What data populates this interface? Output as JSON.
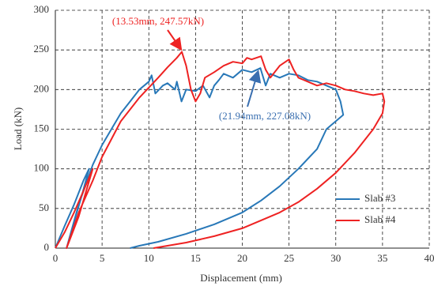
{
  "chart_data": {
    "type": "line",
    "xlabel": "Displacement (mm)",
    "ylabel": "Load (kN)",
    "xlim": [
      0,
      40
    ],
    "xticks": [
      0,
      5,
      10,
      15,
      20,
      25,
      30,
      35,
      40
    ],
    "ylim": [
      0,
      300
    ],
    "yticks": [
      0,
      50,
      100,
      150,
      200,
      250,
      300
    ],
    "grid": true,
    "legend": "lower right",
    "annotations": [
      {
        "text": "(13.53mm, 247.57kN)",
        "color": "#ee2222"
      },
      {
        "text": "(21.94mm, 227.08kN)",
        "color": "#3a6fb0"
      }
    ],
    "series": [
      {
        "name": "Slab #3",
        "color": "#2878b8",
        "x": [
          0,
          1,
          2,
          3,
          3.6,
          2.8,
          1.8,
          1.2,
          2.5,
          4,
          5,
          6,
          7,
          8,
          9,
          10,
          10.3,
          10.7,
          11.5,
          12,
          12.8,
          13,
          13.5,
          14,
          15,
          15.8,
          16.5,
          17,
          17.5,
          18,
          19,
          20,
          21,
          21.94,
          22.5,
          23,
          24,
          25,
          26,
          27,
          28,
          29,
          30,
          30.5,
          30.8,
          29,
          28,
          26,
          24,
          22,
          20,
          17,
          14,
          11,
          9,
          8
        ],
        "values": [
          0,
          28,
          55,
          85,
          100,
          65,
          25,
          0,
          55,
          105,
          130,
          150,
          170,
          185,
          200,
          210,
          218,
          195,
          205,
          208,
          200,
          210,
          185,
          200,
          198,
          205,
          190,
          205,
          212,
          220,
          215,
          225,
          222,
          227.08,
          205,
          220,
          215,
          220,
          218,
          212,
          210,
          205,
          200,
          185,
          168,
          150,
          125,
          100,
          78,
          60,
          45,
          30,
          18,
          8,
          3,
          0
        ]
      },
      {
        "name": "Slab #4",
        "color": "#ee2222",
        "x": [
          0,
          1,
          2,
          3,
          4,
          3.5,
          2.5,
          1.2,
          2.5,
          4,
          5,
          7,
          9,
          11,
          12,
          13,
          13.53,
          14,
          14.5,
          15,
          15.5,
          16,
          17,
          18,
          19,
          20,
          20.5,
          21,
          22,
          22.5,
          23,
          24,
          25,
          25.5,
          26,
          27,
          28,
          29,
          30,
          31,
          32,
          33,
          34,
          35,
          35.2,
          35,
          34,
          32,
          30,
          28,
          26,
          24,
          22,
          20,
          17,
          14,
          12,
          10.5
        ],
        "values": [
          0,
          20,
          45,
          72,
          100,
          80,
          40,
          0,
          45,
          85,
          115,
          160,
          190,
          215,
          228,
          240,
          247.57,
          230,
          200,
          185,
          195,
          215,
          222,
          230,
          235,
          233,
          240,
          238,
          242,
          225,
          215,
          230,
          238,
          225,
          215,
          210,
          205,
          208,
          205,
          200,
          198,
          195,
          193,
          195,
          185,
          170,
          150,
          120,
          95,
          75,
          58,
          45,
          35,
          25,
          15,
          7,
          3,
          0
        ]
      }
    ]
  }
}
